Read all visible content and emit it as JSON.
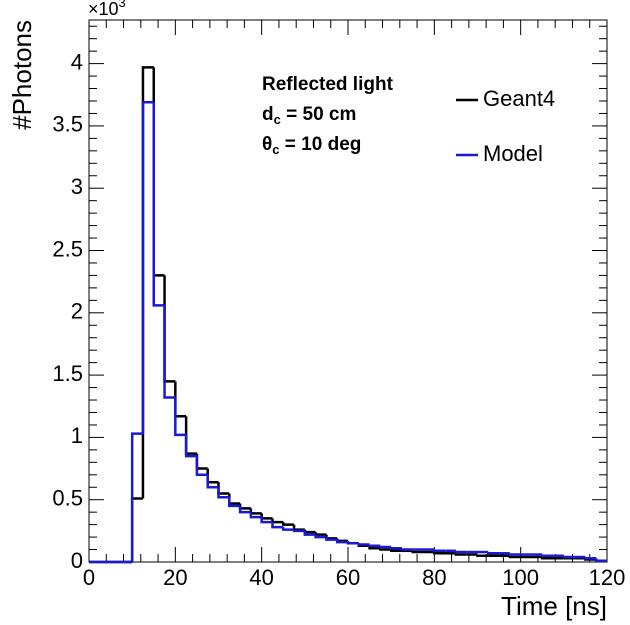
{
  "chart_data": {
    "type": "histogram",
    "x_label": "Time [ns]",
    "y_label": "#Photons",
    "y_multiplier": {
      "base": "×10",
      "exponent": "3"
    },
    "annotations": [
      {
        "main": "Reflected light"
      },
      {
        "main": "d",
        "sub": "c",
        "rest": " = 50 cm"
      },
      {
        "main": "θ",
        "sub": "c",
        "rest": " = 10 deg"
      }
    ],
    "bins": [
      0,
      2.5,
      5,
      7.5,
      10,
      12.5,
      15,
      17.5,
      20,
      22.5,
      25,
      27.5,
      30,
      32.5,
      35,
      37.5,
      40,
      42.5,
      45,
      47.5,
      50,
      52.5,
      55,
      57.5,
      60,
      62.5,
      65,
      67.5,
      70,
      72.5,
      75,
      77.5,
      80,
      82.5,
      85,
      87.5,
      90,
      92.5,
      95,
      97.5,
      100,
      102.5,
      105,
      107.5,
      110,
      112.5,
      115,
      117.5,
      120
    ],
    "series": [
      {
        "name": "Geant4",
        "color": "#000000",
        "values": [
          0,
          0,
          0,
          0,
          0.51,
          3.97,
          2.3,
          1.45,
          1.17,
          0.87,
          0.75,
          0.64,
          0.55,
          0.47,
          0.43,
          0.39,
          0.35,
          0.32,
          0.3,
          0.26,
          0.24,
          0.22,
          0.19,
          0.17,
          0.15,
          0.13,
          0.11,
          0.1,
          0.09,
          0.09,
          0.08,
          0.08,
          0.07,
          0.07,
          0.06,
          0.06,
          0.05,
          0.05,
          0.05,
          0.04,
          0.04,
          0.04,
          0.03,
          0.03,
          0.03,
          0.03,
          0.02,
          0.01
        ]
      },
      {
        "name": "Model",
        "color": "#1a1ad6",
        "values": [
          0,
          0,
          0,
          0,
          1.03,
          3.69,
          2.06,
          1.32,
          1.02,
          0.85,
          0.7,
          0.6,
          0.52,
          0.45,
          0.4,
          0.36,
          0.32,
          0.28,
          0.26,
          0.25,
          0.22,
          0.2,
          0.18,
          0.16,
          0.15,
          0.14,
          0.13,
          0.12,
          0.11,
          0.1,
          0.1,
          0.1,
          0.09,
          0.09,
          0.08,
          0.08,
          0.08,
          0.07,
          0.07,
          0.06,
          0.06,
          0.06,
          0.05,
          0.05,
          0.04,
          0.04,
          0.03,
          0.01
        ]
      }
    ],
    "xlim": [
      0,
      120
    ],
    "xticks": [
      0,
      20,
      40,
      60,
      80,
      100,
      120
    ],
    "ylim": [
      0,
      4.35
    ],
    "yticks": [
      0,
      0.5,
      1,
      1.5,
      2,
      2.5,
      3,
      3.5,
      4
    ]
  }
}
